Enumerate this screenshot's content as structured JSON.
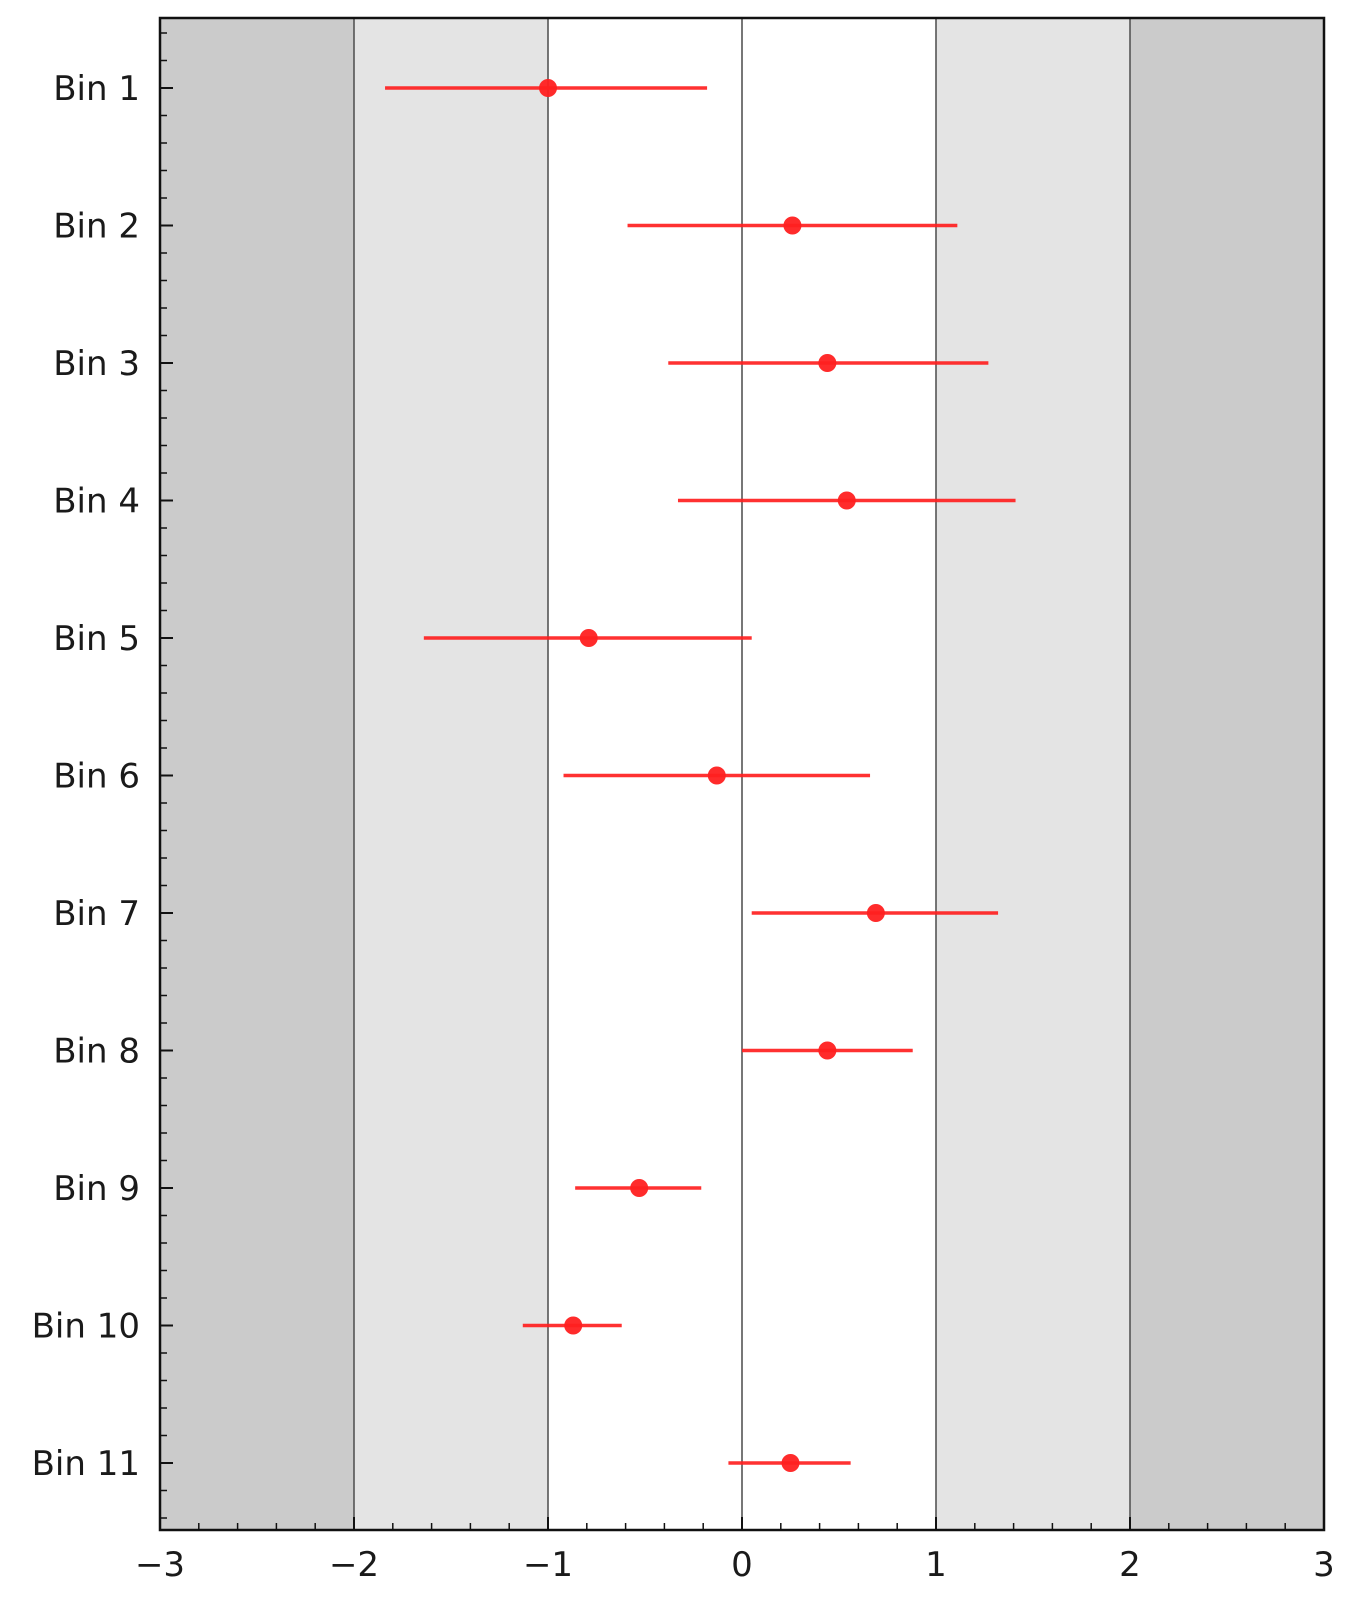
{
  "chart_data": {
    "type": "scatter",
    "title": "",
    "xlabel": "",
    "ylabel": "",
    "xlim": [
      -3,
      3
    ],
    "xticks": [
      -3,
      -2,
      -1,
      0,
      1,
      2,
      3
    ],
    "xtick_labels": [
      "−3",
      "−2",
      "−1",
      "0",
      "1",
      "2",
      "3"
    ],
    "x_minor_step": 0.2,
    "grid": "vertical lines at major x ticks",
    "categories": [
      "Bin 1",
      "Bin 2",
      "Bin 3",
      "Bin 4",
      "Bin 5",
      "Bin 6",
      "Bin 7",
      "Bin 8",
      "Bin 9",
      "Bin 10",
      "Bin 11"
    ],
    "series": [
      {
        "values": [
          -1.0,
          0.26,
          0.44,
          0.54,
          -0.79,
          -0.13,
          0.69,
          0.44,
          -0.53,
          -0.87,
          0.25
        ],
        "xerr_low": [
          -1.84,
          -0.59,
          -0.38,
          -0.33,
          -1.64,
          -0.92,
          0.05,
          0.0,
          -0.86,
          -1.13,
          -0.07
        ],
        "xerr_high": [
          -0.18,
          1.11,
          1.27,
          1.41,
          0.05,
          0.66,
          1.32,
          0.88,
          -0.21,
          -0.62,
          0.56
        ],
        "color": "#ff2020"
      }
    ],
    "shaded_bands": [
      {
        "from": -3,
        "to": -2,
        "color": "#cbcbcb"
      },
      {
        "from": -2,
        "to": -1,
        "color": "#e4e4e4"
      },
      {
        "from": 1,
        "to": 2,
        "color": "#e4e4e4"
      },
      {
        "from": 2,
        "to": 3,
        "color": "#cbcbcb"
      }
    ]
  }
}
